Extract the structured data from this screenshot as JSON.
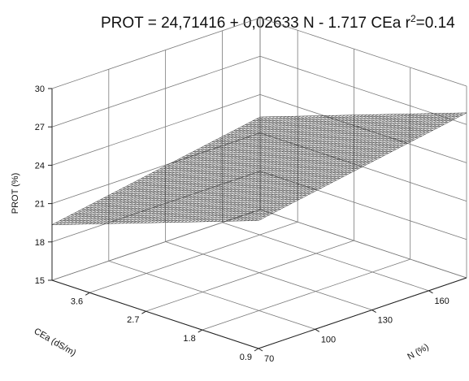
{
  "chart_data": {
    "type": "surface3d",
    "title_main": "PROT = 24,71416 + 0,02633 N - 1.717 CEa r",
    "title_sup": "2",
    "title_end": "=0.14",
    "equation": {
      "intercept": 24.71416,
      "coef_N": 0.02633,
      "coef_CEa": -1.717,
      "r2": 0.14
    },
    "z_axis": {
      "label": "PROT (%)",
      "ticks": [
        15,
        18,
        21,
        24,
        27,
        30
      ],
      "range": [
        15,
        30
      ]
    },
    "x_axis": {
      "label": "N (%)",
      "ticks": [
        70,
        100,
        130,
        160
      ],
      "range": [
        70,
        180
      ]
    },
    "y_axis": {
      "label": "CEa (dS/m)",
      "ticks": [
        0.9,
        1.8,
        2.7,
        3.6
      ],
      "range": [
        0.9,
        4.2
      ]
    },
    "grid": true
  }
}
